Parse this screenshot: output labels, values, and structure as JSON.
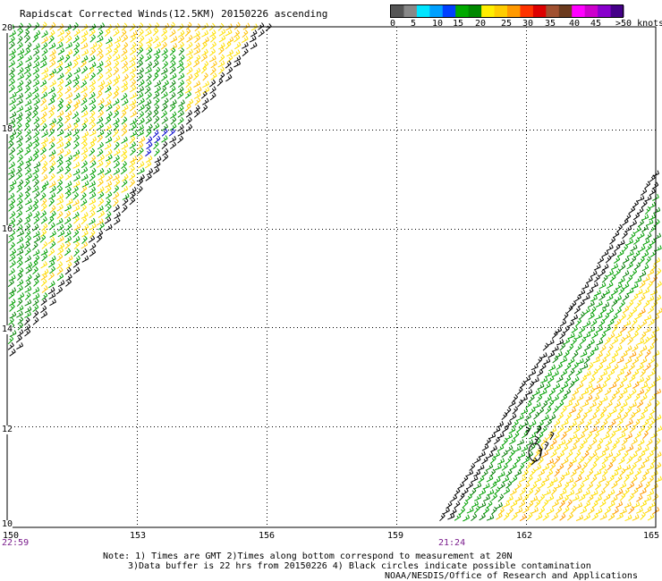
{
  "title": "Rapidscat Corrected Winds(12.5KM) 20150226 ascending",
  "colorbar": {
    "labels": [
      "0",
      "5",
      "10",
      "15",
      "20",
      "25",
      "30",
      "35",
      "40",
      "45",
      ">50 knots"
    ],
    "colors": [
      "#555555",
      "#888888",
      "#00e5ff",
      "#00a0ff",
      "#0040ff",
      "#00aa00",
      "#008800",
      "#ffee00",
      "#ffcc00",
      "#ff9900",
      "#ff3300",
      "#dd0000",
      "#a05030",
      "#6b3a1e",
      "#ff00ff",
      "#cc00cc",
      "#8800cc",
      "#440088"
    ]
  },
  "axes": {
    "lat_labels": [
      "20",
      "18",
      "16",
      "14",
      "12",
      "10"
    ],
    "lon_labels": [
      "150",
      "153",
      "156",
      "159",
      "162",
      "165"
    ]
  },
  "pass_times": [
    "22:59",
    "21:24"
  ],
  "notes": {
    "line1": "Note: 1) Times are GMT 2)Times along bottom correspond to measurement at 20N",
    "line2": "3)Data buffer is 22 hrs from 20150226 4) Black circles indicate possible contamination",
    "line3": "NOAA/NESDIS/Office of Research and Applications"
  }
}
